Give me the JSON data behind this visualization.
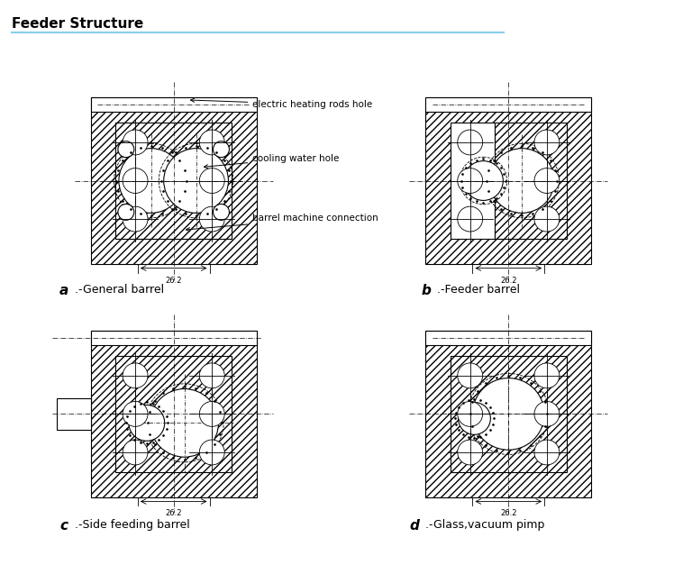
{
  "title": "Feeder Structure",
  "background_color": "#ffffff",
  "line_color": "#000000",
  "annotations": {
    "elec": "electric heating rods hole",
    "cool": "cooling water hole",
    "barrel": "barrel machine connection"
  },
  "dim_text": "26.2",
  "title_line_color": "#87CEEB",
  "label_a_bold": "a",
  "label_a_normal": ".-General barrel",
  "label_b_bold": "b",
  "label_b_normal": ".-Feeder barrel",
  "label_c_bold": "c",
  "label_c_normal": ".-Side feeding barrel",
  "label_d_bold": "d",
  "label_d_normal": ".-Glass,vacuum pimp"
}
